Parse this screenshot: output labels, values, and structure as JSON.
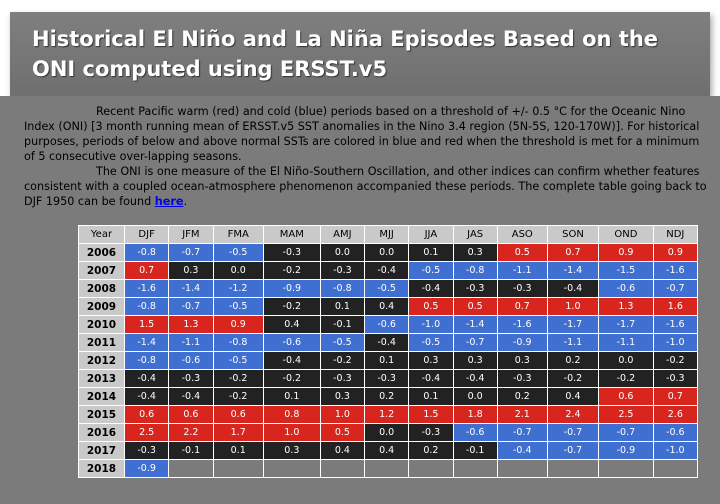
{
  "title": "Historical El Niño and La Niña Episodes Based on the ONI computed using ERSST.v5",
  "intro": {
    "p1": "Recent Pacific warm (red) and cold (blue) periods based on a threshold of +/- 0.5 °C for the Oceanic Nino Index (ONI) [3 month running mean of ERSST.v5 SST anomalies in the Nino 3.4 region (5N-5S, 120-170W)]. For historical purposes, periods of below and above normal SSTs are colored in blue and red when the threshold is met for a minimum of 5 consecutive over-lapping seasons.",
    "p2": "The ONI is one measure of the El Niño-Southern Oscillation, and other indices can confirm whether features consistent with a coupled ocean-atmosphere phenomenon accompanied these periods. The complete table going back to DJF 1950 can be found",
    "link": "here",
    "p2_end": "."
  },
  "colors": {
    "warm": "#d8261e",
    "cold": "#3f6fd0",
    "neutral": "#222222",
    "header": "#c9c9c9"
  },
  "table": {
    "headers": [
      "Year",
      "DJF",
      "JFM",
      "FMA",
      "MAM",
      "AMJ",
      "MJJ",
      "JJA",
      "JAS",
      "ASO",
      "SON",
      "OND",
      "NDJ"
    ],
    "rows": [
      {
        "year": "2006",
        "values": [
          "-0.8",
          "-0.7",
          "-0.5",
          "-0.3",
          "0.0",
          "0.0",
          "0.1",
          "0.3",
          "0.5",
          "0.7",
          "0.9",
          "0.9"
        ],
        "cls": [
          "c",
          "c",
          "c",
          "n",
          "n",
          "n",
          "n",
          "n",
          "w",
          "w",
          "w",
          "w"
        ]
      },
      {
        "year": "2007",
        "values": [
          "0.7",
          "0.3",
          "0.0",
          "-0.2",
          "-0.3",
          "-0.4",
          "-0.5",
          "-0.8",
          "-1.1",
          "-1.4",
          "-1.5",
          "-1.6"
        ],
        "cls": [
          "w",
          "n",
          "n",
          "n",
          "n",
          "n",
          "c",
          "c",
          "c",
          "c",
          "c",
          "c"
        ]
      },
      {
        "year": "2008",
        "values": [
          "-1.6",
          "-1.4",
          "-1.2",
          "-0.9",
          "-0.8",
          "-0.5",
          "-0.4",
          "-0.3",
          "-0.3",
          "-0.4",
          "-0.6",
          "-0.7"
        ],
        "cls": [
          "c",
          "c",
          "c",
          "c",
          "c",
          "c",
          "n",
          "n",
          "n",
          "n",
          "c",
          "c"
        ]
      },
      {
        "year": "2009",
        "values": [
          "-0.8",
          "-0.7",
          "-0.5",
          "-0.2",
          "0.1",
          "0.4",
          "0.5",
          "0.5",
          "0.7",
          "1.0",
          "1.3",
          "1.6"
        ],
        "cls": [
          "c",
          "c",
          "c",
          "n",
          "n",
          "n",
          "w",
          "w",
          "w",
          "w",
          "w",
          "w"
        ]
      },
      {
        "year": "2010",
        "values": [
          "1.5",
          "1.3",
          "0.9",
          "0.4",
          "-0.1",
          "-0.6",
          "-1.0",
          "-1.4",
          "-1.6",
          "-1.7",
          "-1.7",
          "-1.6"
        ],
        "cls": [
          "w",
          "w",
          "w",
          "n",
          "n",
          "c",
          "c",
          "c",
          "c",
          "c",
          "c",
          "c"
        ]
      },
      {
        "year": "2011",
        "values": [
          "-1.4",
          "-1.1",
          "-0.8",
          "-0.6",
          "-0.5",
          "-0.4",
          "-0.5",
          "-0.7",
          "-0.9",
          "-1.1",
          "-1.1",
          "-1.0"
        ],
        "cls": [
          "c",
          "c",
          "c",
          "c",
          "c",
          "n",
          "c",
          "c",
          "c",
          "c",
          "c",
          "c"
        ]
      },
      {
        "year": "2012",
        "values": [
          "-0.8",
          "-0.6",
          "-0.5",
          "-0.4",
          "-0.2",
          "0.1",
          "0.3",
          "0.3",
          "0.3",
          "0.2",
          "0.0",
          "-0.2"
        ],
        "cls": [
          "c",
          "c",
          "c",
          "n",
          "n",
          "n",
          "n",
          "n",
          "n",
          "n",
          "n",
          "n"
        ]
      },
      {
        "year": "2013",
        "values": [
          "-0.4",
          "-0.3",
          "-0.2",
          "-0.2",
          "-0.3",
          "-0.3",
          "-0.4",
          "-0.4",
          "-0.3",
          "-0.2",
          "-0.2",
          "-0.3"
        ],
        "cls": [
          "n",
          "n",
          "n",
          "n",
          "n",
          "n",
          "n",
          "n",
          "n",
          "n",
          "n",
          "n"
        ]
      },
      {
        "year": "2014",
        "values": [
          "-0.4",
          "-0.4",
          "-0.2",
          "0.1",
          "0.3",
          "0.2",
          "0.1",
          "0.0",
          "0.2",
          "0.4",
          "0.6",
          "0.7"
        ],
        "cls": [
          "n",
          "n",
          "n",
          "n",
          "n",
          "n",
          "n",
          "n",
          "n",
          "n",
          "w",
          "w"
        ]
      },
      {
        "year": "2015",
        "values": [
          "0.6",
          "0.6",
          "0.6",
          "0.8",
          "1.0",
          "1.2",
          "1.5",
          "1.8",
          "2.1",
          "2.4",
          "2.5",
          "2.6"
        ],
        "cls": [
          "w",
          "w",
          "w",
          "w",
          "w",
          "w",
          "w",
          "w",
          "w",
          "w",
          "w",
          "w"
        ]
      },
      {
        "year": "2016",
        "values": [
          "2.5",
          "2.2",
          "1.7",
          "1.0",
          "0.5",
          "0.0",
          "-0.3",
          "-0.6",
          "-0.7",
          "-0.7",
          "-0.7",
          "-0.6"
        ],
        "cls": [
          "w",
          "w",
          "w",
          "w",
          "w",
          "n",
          "n",
          "c",
          "c",
          "c",
          "c",
          "c"
        ]
      },
      {
        "year": "2017",
        "values": [
          "-0.3",
          "-0.1",
          "0.1",
          "0.3",
          "0.4",
          "0.4",
          "0.2",
          "-0.1",
          "-0.4",
          "-0.7",
          "-0.9",
          "-1.0"
        ],
        "cls": [
          "n",
          "n",
          "n",
          "n",
          "n",
          "n",
          "n",
          "n",
          "c",
          "c",
          "c",
          "c"
        ]
      },
      {
        "year": "2018",
        "values": [
          "-0.9"
        ],
        "cls": [
          "c"
        ]
      }
    ]
  }
}
